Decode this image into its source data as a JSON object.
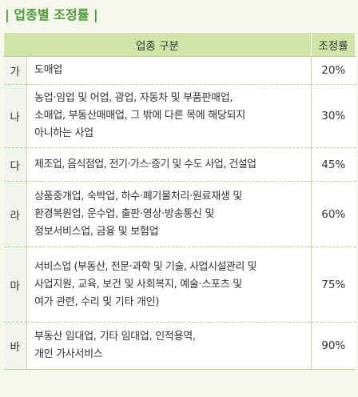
{
  "title": "| 업종별 조정률 |",
  "table": {
    "headers": [
      "업종 구분",
      "조정률"
    ],
    "rows": [
      {
        "label": "가",
        "lines": [
          "도매업"
        ],
        "rate": "20%"
      },
      {
        "label": "나",
        "lines": [
          "농업·임업 및 어업, 광업, 자동차 및 부품판매업,",
          "소매업, 부동산매매업, 그 밖에 다른 목에 해당되지",
          "아니하는 사업"
        ],
        "rate": "30%"
      },
      {
        "label": "다",
        "lines": [
          "제조업, 음식점업, 전기·가스·증기 및 수도 사업, 건설업"
        ],
        "rate": "45%"
      },
      {
        "label": "라",
        "lines": [
          "상품중개업, 숙박업, 하수·폐기물처리·원료재생 및",
          "환경복원업, 운수업, 출판·영상·방송통신 및",
          "정보서비스업, 금융 및 보험업"
        ],
        "rate": "60%"
      },
      {
        "label": "마",
        "lines": [
          "서비스업 (부동산, 전문·과학 및 기술, 사업시설관리 및",
          "사업지원, 교육, 보건 및 사회복지, 예술·스포츠 및",
          "여가 관련, 수리 및 기타 개인)"
        ],
        "rate": "75%"
      },
      {
        "label": "바",
        "lines": [
          "부동산 임대업, 기타 임대업, 인적용역,",
          "개인 가사서비스"
        ],
        "rate": "90%"
      }
    ]
  },
  "colors": {
    "accent": "#4d9a3a",
    "header_bg": "#cfe5a8",
    "page_bg": "#f4f8ea"
  }
}
